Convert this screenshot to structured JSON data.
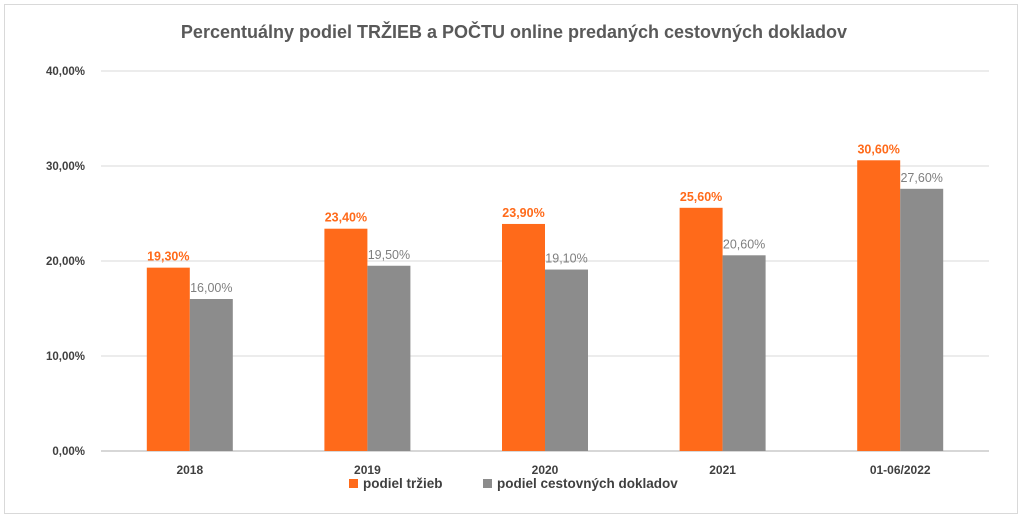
{
  "chart_data": {
    "type": "bar",
    "title": "Percentuálny podiel TRŽIEB  a POČTU online predaných cestovných dokladov",
    "xlabel": "",
    "ylabel": "",
    "categories": [
      "2018",
      "2019",
      "2020",
      "2021",
      "01-06/2022"
    ],
    "series": [
      {
        "name": "podiel tržieb",
        "color": "#FF6A1A",
        "values": [
          19.3,
          23.4,
          23.9,
          25.6,
          30.6
        ],
        "labels": [
          "19,30%",
          "23,40%",
          "23,90%",
          "25,60%",
          "30,60%"
        ]
      },
      {
        "name": "podiel cestovných dokladov",
        "color": "#8C8C8C",
        "values": [
          16.0,
          19.5,
          19.1,
          20.6,
          27.6
        ],
        "labels": [
          "16,00%",
          "19,50%",
          "19,10%",
          "20,60%",
          "27,60%"
        ]
      }
    ],
    "ylim": [
      0,
      40
    ],
    "yticks": [
      0,
      10,
      20,
      30,
      40
    ],
    "ytick_labels": [
      "0,00%",
      "10,00%",
      "20,00%",
      "30,00%",
      "40,00%"
    ],
    "grid": true,
    "legend_position": "bottom",
    "gridline_color": "#D9D9D9",
    "axis_line_color": "#BFBFBF",
    "label_color_series1": "#FF6A1A",
    "label_color_series2": "#7F7F7F"
  }
}
